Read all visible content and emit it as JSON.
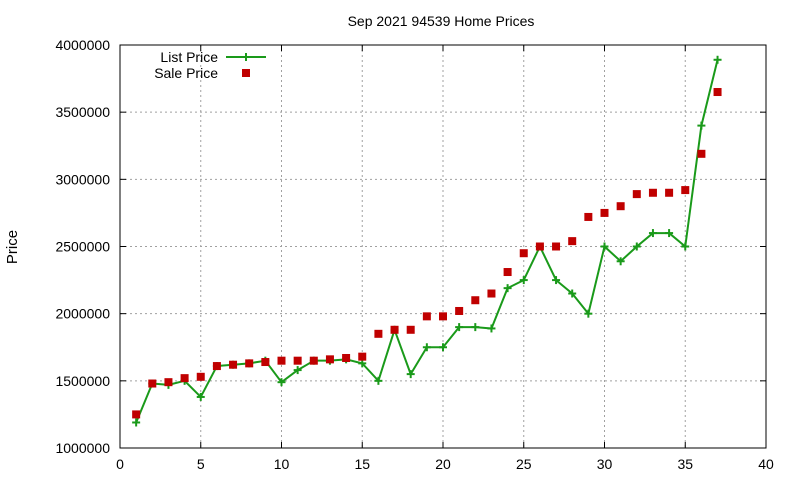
{
  "chart_data": {
    "type": "line",
    "title": "Sep 2021 94539 Home Prices",
    "xlabel": "",
    "ylabel": "Price",
    "xlim": [
      0,
      40
    ],
    "ylim": [
      1000000,
      4000000
    ],
    "x_ticks": [
      0,
      5,
      10,
      15,
      20,
      25,
      30,
      35,
      40
    ],
    "y_ticks": [
      1000000,
      1500000,
      2000000,
      2500000,
      3000000,
      3500000,
      4000000
    ],
    "grid": true,
    "legend_position": "top-left",
    "series": [
      {
        "name": "List Price",
        "style": "line-plus",
        "color": "#1a9a1a",
        "x": [
          1,
          2,
          3,
          4,
          5,
          6,
          7,
          8,
          9,
          10,
          11,
          12,
          13,
          14,
          15,
          16,
          17,
          18,
          19,
          20,
          21,
          22,
          23,
          24,
          25,
          26,
          27,
          28,
          29,
          30,
          31,
          32,
          33,
          34,
          35,
          36,
          37
        ],
        "y": [
          1190000,
          1480000,
          1470000,
          1500000,
          1380000,
          1610000,
          1620000,
          1630000,
          1650000,
          1490000,
          1580000,
          1650000,
          1650000,
          1660000,
          1630000,
          1500000,
          1880000,
          1550000,
          1750000,
          1750000,
          1900000,
          1900000,
          1890000,
          2190000,
          2250000,
          2500000,
          2250000,
          2150000,
          2000000,
          2500000,
          2390000,
          2500000,
          2600000,
          2600000,
          2500000,
          3400000,
          3890000
        ]
      },
      {
        "name": "Sale Price",
        "style": "square-markers",
        "color": "#c00000",
        "x": [
          1,
          2,
          3,
          4,
          5,
          6,
          7,
          8,
          9,
          10,
          11,
          12,
          13,
          14,
          15,
          16,
          17,
          18,
          19,
          20,
          21,
          22,
          23,
          24,
          25,
          26,
          27,
          28,
          29,
          30,
          31,
          32,
          33,
          34,
          35,
          36,
          37
        ],
        "y": [
          1250000,
          1480000,
          1490000,
          1520000,
          1530000,
          1610000,
          1620000,
          1630000,
          1640000,
          1650000,
          1650000,
          1650000,
          1660000,
          1670000,
          1680000,
          1850000,
          1880000,
          1880000,
          1980000,
          1980000,
          2020000,
          2100000,
          2150000,
          2310000,
          2450000,
          2500000,
          2500000,
          2540000,
          2720000,
          2750000,
          2800000,
          2890000,
          2900000,
          2900000,
          2920000,
          3190000,
          3650000
        ]
      }
    ]
  }
}
